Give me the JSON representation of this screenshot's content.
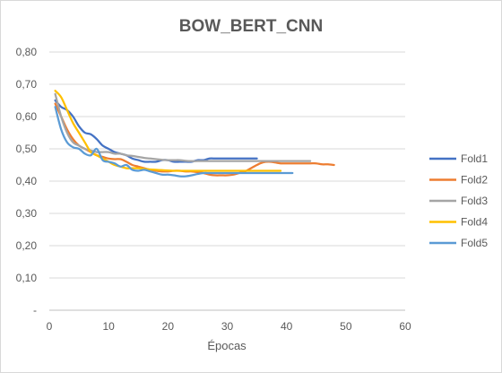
{
  "chart_data": {
    "type": "line",
    "title": "BOW_BERT_CNN",
    "xlabel": "Épocas",
    "ylabel": "",
    "xlim": [
      0,
      60
    ],
    "ylim": [
      0,
      0.8
    ],
    "xticks": [
      0,
      10,
      20,
      30,
      40,
      50,
      60
    ],
    "xtick_labels": [
      "0",
      "10",
      "20",
      "30",
      "40",
      "50",
      "60"
    ],
    "yticks": [
      0,
      0.1,
      0.2,
      0.3,
      0.4,
      0.5,
      0.6,
      0.7,
      0.8
    ],
    "ytick_labels": [
      "-",
      "0,10",
      "0,20",
      "0,30",
      "0,40",
      "0,50",
      "0,60",
      "0,70",
      "0,80"
    ],
    "grid": true,
    "legend_position": "right",
    "series": [
      {
        "name": "Fold1",
        "color": "#4472c4",
        "x": [
          1,
          2,
          3,
          4,
          5,
          6,
          7,
          8,
          9,
          10,
          11,
          12,
          13,
          14,
          15,
          16,
          17,
          18,
          19,
          20,
          21,
          22,
          23,
          24,
          25,
          26,
          27,
          28,
          29,
          30,
          31,
          32,
          33,
          34,
          35
        ],
        "y": [
          0.65,
          0.63,
          0.62,
          0.6,
          0.57,
          0.55,
          0.545,
          0.53,
          0.51,
          0.5,
          0.49,
          0.485,
          0.48,
          0.47,
          0.465,
          0.46,
          0.46,
          0.46,
          0.465,
          0.465,
          0.46,
          0.46,
          0.46,
          0.46,
          0.465,
          0.465,
          0.47,
          0.47,
          0.47,
          0.47,
          0.47,
          0.47,
          0.47,
          0.47,
          0.47
        ]
      },
      {
        "name": "Fold2",
        "color": "#ed7d31",
        "x": [
          1,
          2,
          3,
          4,
          5,
          6,
          7,
          8,
          9,
          10,
          11,
          12,
          13,
          14,
          15,
          16,
          17,
          18,
          19,
          20,
          21,
          22,
          23,
          24,
          25,
          26,
          27,
          28,
          29,
          30,
          31,
          32,
          33,
          34,
          35,
          36,
          37,
          38,
          39,
          40,
          41,
          42,
          43,
          44,
          45,
          46,
          47,
          48
        ],
        "y": [
          0.64,
          0.6,
          0.56,
          0.53,
          0.51,
          0.5,
          0.49,
          0.48,
          0.475,
          0.47,
          0.468,
          0.468,
          0.46,
          0.45,
          0.445,
          0.44,
          0.435,
          0.432,
          0.43,
          0.43,
          0.432,
          0.432,
          0.43,
          0.43,
          0.428,
          0.425,
          0.42,
          0.418,
          0.418,
          0.418,
          0.42,
          0.425,
          0.43,
          0.44,
          0.45,
          0.458,
          0.46,
          0.458,
          0.455,
          0.455,
          0.455,
          0.455,
          0.455,
          0.455,
          0.455,
          0.452,
          0.452,
          0.45
        ]
      },
      {
        "name": "Fold3",
        "color": "#a5a5a5",
        "x": [
          1,
          2,
          3,
          4,
          5,
          6,
          7,
          8,
          9,
          10,
          11,
          12,
          13,
          14,
          15,
          16,
          17,
          18,
          19,
          20,
          21,
          22,
          23,
          24,
          25,
          26,
          27,
          28,
          29,
          30,
          31,
          32,
          33,
          34,
          35,
          36,
          37,
          38,
          39,
          40,
          41,
          42,
          43,
          44
        ],
        "y": [
          0.67,
          0.6,
          0.55,
          0.52,
          0.51,
          0.5,
          0.495,
          0.49,
          0.49,
          0.49,
          0.485,
          0.485,
          0.48,
          0.478,
          0.475,
          0.472,
          0.47,
          0.468,
          0.466,
          0.465,
          0.465,
          0.465,
          0.463,
          0.462,
          0.462,
          0.462,
          0.462,
          0.462,
          0.462,
          0.462,
          0.462,
          0.462,
          0.462,
          0.462,
          0.462,
          0.462,
          0.462,
          0.462,
          0.462,
          0.462,
          0.462,
          0.462,
          0.462,
          0.462
        ]
      },
      {
        "name": "Fold4",
        "color": "#ffc000",
        "x": [
          1,
          2,
          3,
          4,
          5,
          6,
          7,
          8,
          9,
          10,
          11,
          12,
          13,
          14,
          15,
          16,
          17,
          18,
          19,
          20,
          21,
          22,
          23,
          24,
          25,
          26,
          27,
          28,
          29,
          30,
          31,
          32,
          33,
          34,
          35,
          36,
          37,
          38,
          39
        ],
        "y": [
          0.68,
          0.66,
          0.62,
          0.58,
          0.55,
          0.52,
          0.49,
          0.48,
          0.47,
          0.46,
          0.45,
          0.445,
          0.44,
          0.44,
          0.44,
          0.438,
          0.436,
          0.435,
          0.434,
          0.433,
          0.432,
          0.432,
          0.432,
          0.432,
          0.432,
          0.432,
          0.432,
          0.432,
          0.432,
          0.432,
          0.432,
          0.432,
          0.432,
          0.432,
          0.432,
          0.432,
          0.432,
          0.432,
          0.432
        ]
      },
      {
        "name": "Fold5",
        "color": "#5b9bd5",
        "x": [
          1,
          2,
          3,
          4,
          5,
          6,
          7,
          8,
          9,
          10,
          11,
          12,
          13,
          14,
          15,
          16,
          17,
          18,
          19,
          20,
          21,
          22,
          23,
          24,
          25,
          26,
          27,
          28,
          29,
          30,
          31,
          32,
          33,
          34,
          35,
          36,
          37,
          38,
          39,
          40,
          41
        ],
        "y": [
          0.63,
          0.56,
          0.52,
          0.505,
          0.5,
          0.485,
          0.48,
          0.5,
          0.465,
          0.46,
          0.455,
          0.445,
          0.45,
          0.435,
          0.432,
          0.435,
          0.43,
          0.425,
          0.42,
          0.42,
          0.418,
          0.415,
          0.415,
          0.418,
          0.422,
          0.425,
          0.425,
          0.425,
          0.425,
          0.425,
          0.425,
          0.425,
          0.425,
          0.425,
          0.425,
          0.425,
          0.425,
          0.425,
          0.425,
          0.425,
          0.425
        ]
      }
    ]
  }
}
